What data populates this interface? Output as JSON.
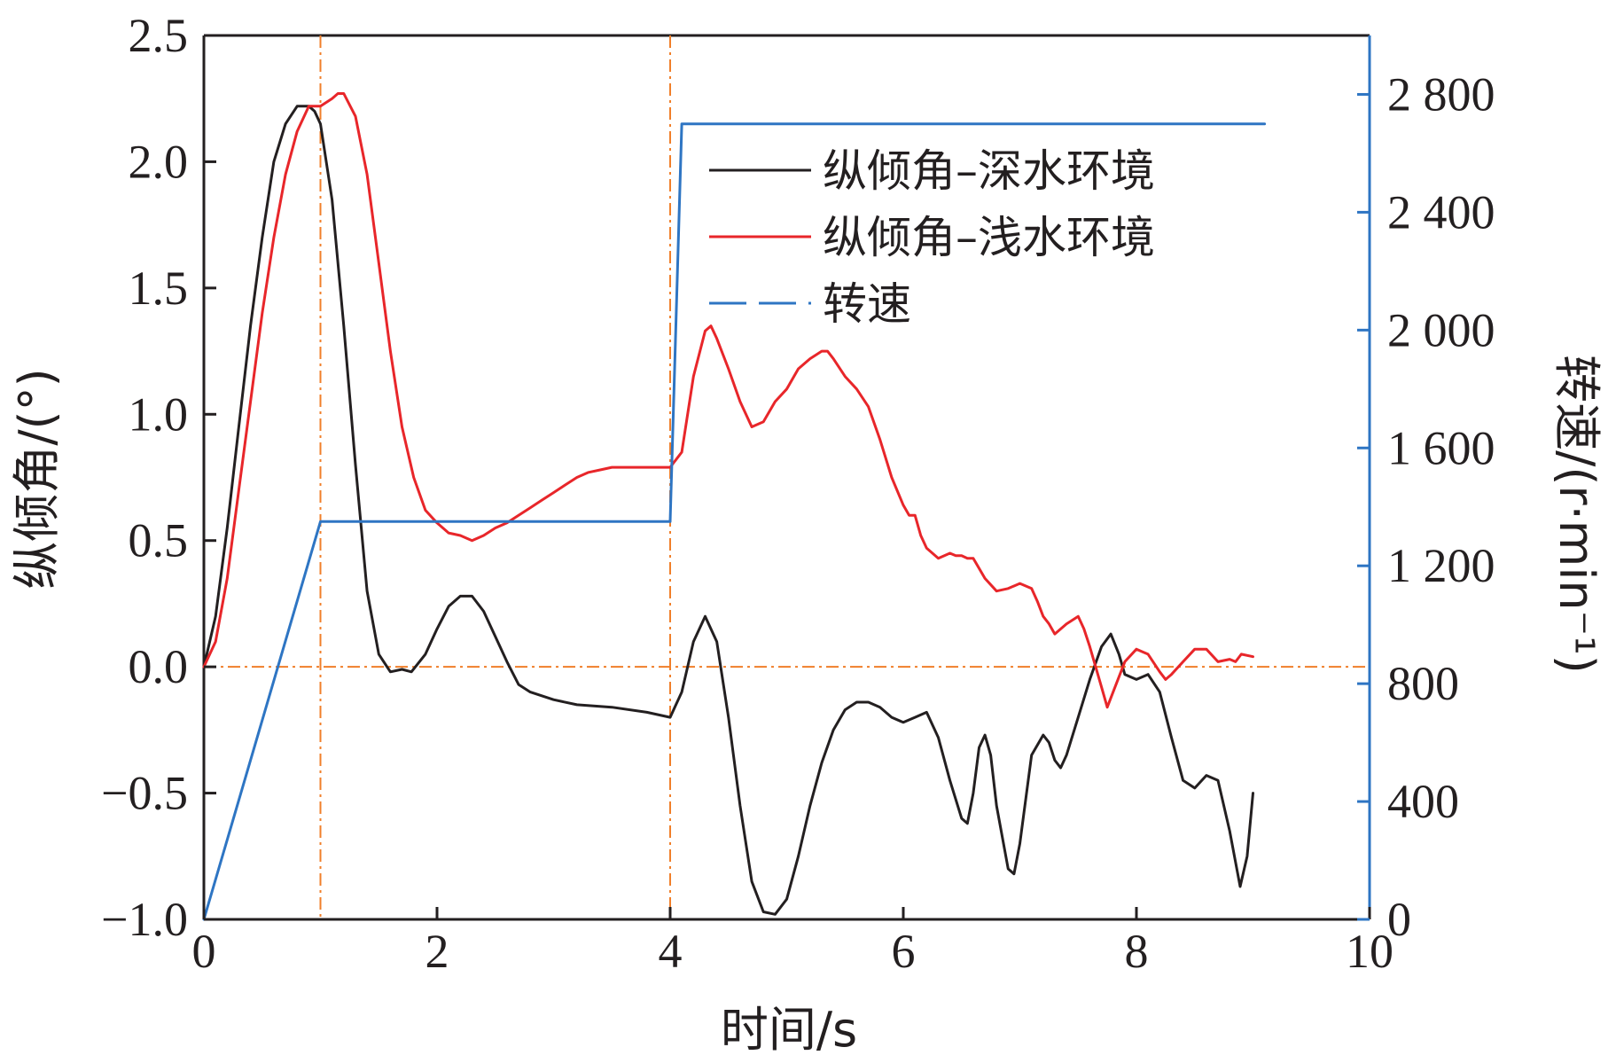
{
  "chart_data": {
    "type": "line",
    "xlabel": "时间/s",
    "ylabel": "纵倾角/(°)",
    "y2label": "转速/(r·min⁻¹)",
    "xlim": [
      0,
      10
    ],
    "ylim": [
      -1.0,
      2.5
    ],
    "y2lim": [
      0,
      3000
    ],
    "x_ticks": [
      0,
      2,
      4,
      6,
      8,
      10
    ],
    "x_tick_labels": [
      "0",
      "2",
      "4",
      "6",
      "8",
      "10"
    ],
    "y_ticks": [
      -1.0,
      -0.5,
      0.0,
      0.5,
      1.0,
      1.5,
      2.0,
      2.5
    ],
    "y_tick_labels": [
      "−1.0",
      "−0.5",
      "0.0",
      "0.5",
      "1.0",
      "1.5",
      "2.0",
      "2.5"
    ],
    "y2_ticks": [
      0,
      400,
      800,
      1200,
      1600,
      2000,
      2400,
      2800
    ],
    "y2_tick_labels": [
      "0",
      "400",
      "800",
      "1 200",
      "1 600",
      "2 000",
      "2 400",
      "2 800"
    ],
    "grid": false,
    "legend_position": "top-right",
    "reference_lines": {
      "vertical_x": [
        1,
        4
      ],
      "horizontal_y": [
        0.0
      ],
      "color": "#f07f2a"
    },
    "series": [
      {
        "name": "纵倾角–深水环境",
        "axis": "left",
        "color": "#231f20",
        "line_style": "solid",
        "x": [
          0,
          0.1,
          0.2,
          0.3,
          0.4,
          0.5,
          0.6,
          0.7,
          0.8,
          0.9,
          0.95,
          1.0,
          1.1,
          1.2,
          1.3,
          1.4,
          1.5,
          1.6,
          1.7,
          1.78,
          1.9,
          2.0,
          2.1,
          2.2,
          2.3,
          2.4,
          2.5,
          2.6,
          2.7,
          2.8,
          3.0,
          3.2,
          3.5,
          3.8,
          4.0,
          4.1,
          4.2,
          4.3,
          4.4,
          4.5,
          4.6,
          4.7,
          4.8,
          4.9,
          5.0,
          5.1,
          5.2,
          5.3,
          5.4,
          5.5,
          5.6,
          5.7,
          5.8,
          5.9,
          6.0,
          6.1,
          6.2,
          6.3,
          6.4,
          6.5,
          6.55,
          6.6,
          6.65,
          6.7,
          6.75,
          6.8,
          6.9,
          6.95,
          7.0,
          7.1,
          7.2,
          7.25,
          7.3,
          7.35,
          7.4,
          7.5,
          7.6,
          7.7,
          7.78,
          7.85,
          7.9,
          8.0,
          8.1,
          8.2,
          8.3,
          8.4,
          8.5,
          8.6,
          8.7,
          8.8,
          8.89,
          8.95,
          9.0
        ],
        "values": [
          0.0,
          0.2,
          0.55,
          0.95,
          1.35,
          1.7,
          2.0,
          2.15,
          2.22,
          2.22,
          2.2,
          2.15,
          1.85,
          1.35,
          0.8,
          0.3,
          0.05,
          -0.02,
          -0.01,
          -0.02,
          0.05,
          0.15,
          0.24,
          0.28,
          0.28,
          0.22,
          0.12,
          0.02,
          -0.07,
          -0.1,
          -0.13,
          -0.15,
          -0.16,
          -0.18,
          -0.2,
          -0.1,
          0.1,
          0.2,
          0.1,
          -0.2,
          -0.55,
          -0.85,
          -0.97,
          -0.98,
          -0.92,
          -0.75,
          -0.55,
          -0.38,
          -0.25,
          -0.17,
          -0.14,
          -0.14,
          -0.16,
          -0.2,
          -0.22,
          -0.2,
          -0.18,
          -0.28,
          -0.45,
          -0.6,
          -0.62,
          -0.5,
          -0.32,
          -0.27,
          -0.35,
          -0.55,
          -0.8,
          -0.82,
          -0.7,
          -0.35,
          -0.27,
          -0.3,
          -0.37,
          -0.4,
          -0.35,
          -0.2,
          -0.05,
          0.08,
          0.13,
          0.05,
          -0.03,
          -0.05,
          -0.03,
          -0.1,
          -0.28,
          -0.45,
          -0.48,
          -0.43,
          -0.45,
          -0.65,
          -0.87,
          -0.75,
          -0.5
        ]
      },
      {
        "name": "纵倾角–浅水环境",
        "axis": "left",
        "color": "#e8262a",
        "line_style": "solid",
        "x": [
          0,
          0.1,
          0.2,
          0.3,
          0.4,
          0.5,
          0.6,
          0.7,
          0.8,
          0.9,
          1.0,
          1.1,
          1.15,
          1.2,
          1.3,
          1.4,
          1.5,
          1.6,
          1.7,
          1.8,
          1.9,
          2.0,
          2.1,
          2.2,
          2.3,
          2.4,
          2.5,
          2.6,
          2.7,
          2.8,
          2.9,
          3.0,
          3.1,
          3.2,
          3.3,
          3.4,
          3.5,
          3.6,
          3.7,
          3.8,
          3.9,
          4.0,
          4.1,
          4.2,
          4.3,
          4.35,
          4.4,
          4.5,
          4.6,
          4.7,
          4.8,
          4.9,
          5.0,
          5.1,
          5.2,
          5.3,
          5.35,
          5.4,
          5.5,
          5.6,
          5.7,
          5.8,
          5.9,
          6.0,
          6.05,
          6.1,
          6.15,
          6.2,
          6.3,
          6.4,
          6.45,
          6.5,
          6.55,
          6.6,
          6.7,
          6.8,
          6.9,
          7.0,
          7.1,
          7.15,
          7.2,
          7.25,
          7.3,
          7.4,
          7.5,
          7.55,
          7.6,
          7.7,
          7.75,
          7.8,
          7.9,
          8.0,
          8.05,
          8.1,
          8.2,
          8.25,
          8.3,
          8.4,
          8.5,
          8.6,
          8.7,
          8.8,
          8.85,
          8.9,
          9.0
        ],
        "values": [
          0.0,
          0.1,
          0.35,
          0.7,
          1.05,
          1.4,
          1.7,
          1.95,
          2.12,
          2.22,
          2.22,
          2.25,
          2.27,
          2.27,
          2.18,
          1.95,
          1.6,
          1.25,
          0.95,
          0.75,
          0.62,
          0.57,
          0.53,
          0.52,
          0.5,
          0.52,
          0.55,
          0.57,
          0.6,
          0.63,
          0.66,
          0.69,
          0.72,
          0.75,
          0.77,
          0.78,
          0.79,
          0.79,
          0.79,
          0.79,
          0.79,
          0.79,
          0.85,
          1.15,
          1.33,
          1.35,
          1.3,
          1.18,
          1.05,
          0.95,
          0.97,
          1.05,
          1.1,
          1.18,
          1.22,
          1.25,
          1.25,
          1.22,
          1.15,
          1.1,
          1.03,
          0.9,
          0.75,
          0.64,
          0.6,
          0.6,
          0.52,
          0.47,
          0.43,
          0.45,
          0.44,
          0.44,
          0.43,
          0.43,
          0.35,
          0.3,
          0.31,
          0.33,
          0.31,
          0.26,
          0.2,
          0.17,
          0.13,
          0.17,
          0.2,
          0.15,
          0.08,
          -0.08,
          -0.16,
          -0.1,
          0.02,
          0.07,
          0.06,
          0.05,
          -0.02,
          -0.05,
          -0.03,
          0.02,
          0.07,
          0.07,
          0.02,
          0.03,
          0.02,
          0.05,
          0.04
        ]
      },
      {
        "name": "转速",
        "axis": "right",
        "color": "#2e75c3",
        "line_style": "dashed",
        "x": [
          0,
          1.0,
          4.0,
          4.0,
          4.1,
          9.1
        ],
        "values": [
          0,
          1350,
          1350,
          1350,
          2700,
          2700
        ]
      }
    ]
  }
}
